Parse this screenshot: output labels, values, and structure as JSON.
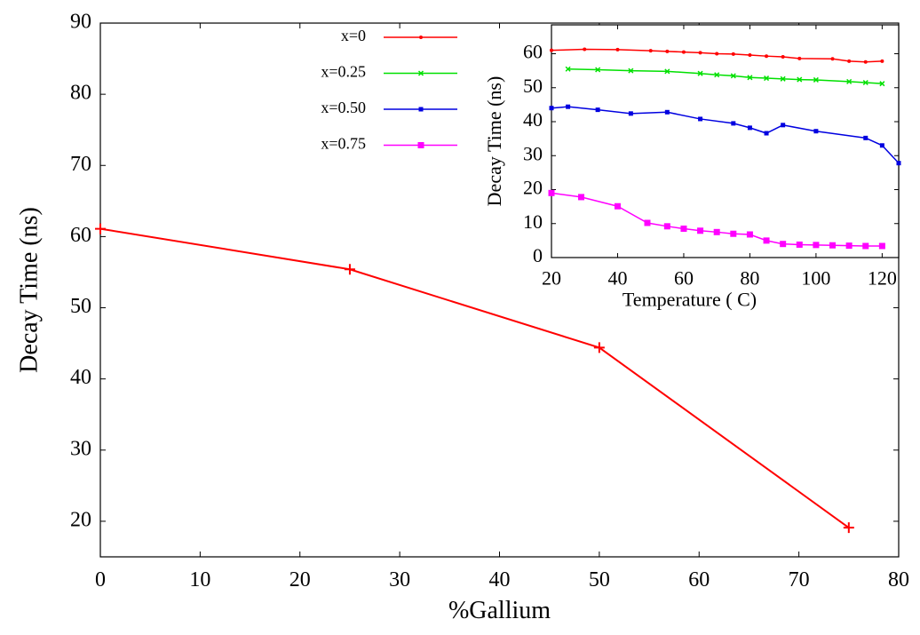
{
  "chart_data": [
    {
      "type": "line",
      "xlabel": "%Gallium",
      "ylabel": "Decay Time (ns)",
      "x": [
        0,
        25,
        50,
        75
      ],
      "values": [
        61.1,
        55.4,
        44.4,
        19.1
      ],
      "color": "#ff0000",
      "marker": "plus",
      "xlim": [
        0,
        80
      ],
      "xticks": [
        0,
        10,
        20,
        30,
        40,
        50,
        60,
        70,
        80
      ],
      "ylim": [
        15,
        90
      ],
      "yticks": [
        20,
        30,
        40,
        50,
        60,
        70,
        80,
        90
      ]
    },
    {
      "type": "line",
      "xlabel": "Temperature ( C)",
      "ylabel": "Decay Time (ns)",
      "legend": "left",
      "xlim": [
        20,
        125
      ],
      "xticks": [
        20,
        40,
        60,
        80,
        100,
        120
      ],
      "ylim": [
        0,
        68.5
      ],
      "yticks": [
        0,
        10,
        20,
        30,
        40,
        50,
        60
      ],
      "series": [
        {
          "name": "x=0",
          "color": "#ff0000",
          "marker": "dot",
          "x": [
            20,
            30,
            40,
            50,
            55,
            60,
            65,
            70,
            75,
            80,
            85,
            90,
            95,
            105,
            110,
            115,
            120
          ],
          "values": [
            61,
            61.3,
            61.2,
            60.9,
            60.7,
            60.5,
            60.3,
            60,
            59.9,
            59.6,
            59.3,
            59.1,
            58.6,
            58.5,
            57.8,
            57.6,
            57.8
          ]
        },
        {
          "name": "x=0.25",
          "color": "#00e000",
          "marker": "x",
          "x": [
            25,
            34,
            44,
            55,
            65,
            70,
            75,
            80,
            85,
            90,
            95,
            100,
            110,
            115,
            120
          ],
          "values": [
            55.5,
            55.3,
            55,
            54.8,
            54.2,
            53.8,
            53.5,
            53,
            52.8,
            52.6,
            52.4,
            52.3,
            51.8,
            51.5,
            51.2
          ]
        },
        {
          "name": "x=0.50",
          "color": "#0000e0",
          "marker": "smallsquare",
          "x": [
            20,
            25,
            34,
            44,
            55,
            65,
            75,
            80,
            85,
            90,
            100,
            115,
            120,
            125
          ],
          "values": [
            44,
            44.4,
            43.5,
            42.4,
            42.8,
            40.8,
            39.5,
            38.2,
            36.6,
            39,
            37.2,
            35.2,
            33,
            27.8
          ]
        },
        {
          "name": "x=0.75",
          "color": "#ff00ff",
          "marker": "square",
          "x": [
            20,
            29,
            40,
            49,
            55,
            60,
            65,
            70,
            75,
            80,
            85,
            90,
            95,
            100,
            105,
            110,
            115,
            120
          ],
          "values": [
            19,
            17.8,
            15.1,
            10.2,
            9.2,
            8.5,
            7.9,
            7.5,
            7,
            6.8,
            5,
            4,
            3.8,
            3.7,
            3.6,
            3.5,
            3.4,
            3.4
          ]
        }
      ]
    }
  ]
}
